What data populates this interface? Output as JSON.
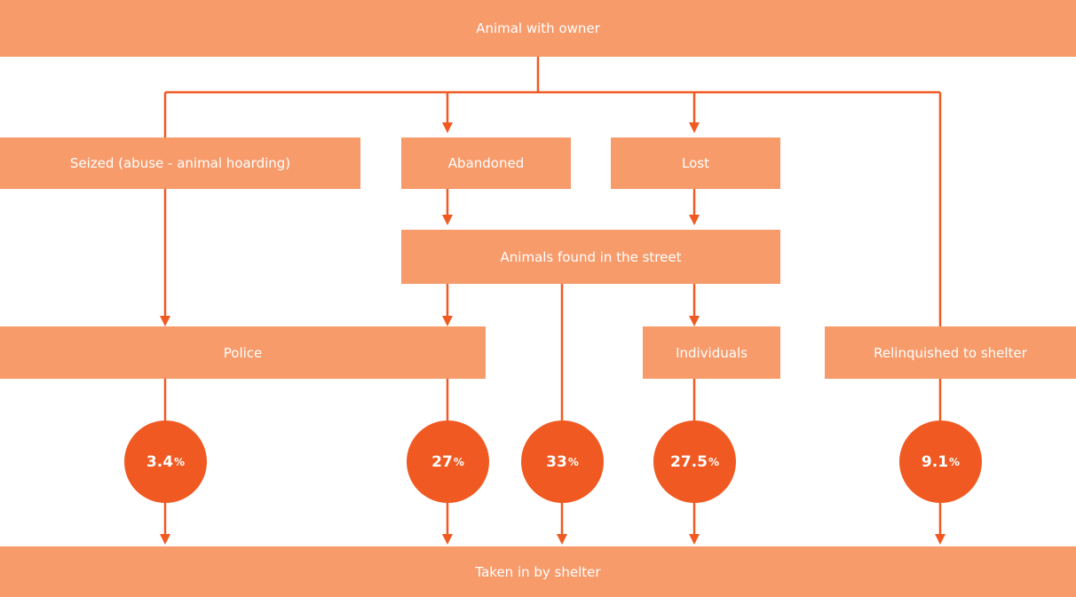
{
  "colors": {
    "box": "#f79b6b",
    "line": "#f05a22",
    "circle": "#f05a22",
    "text": "#ffffff"
  },
  "nodes": {
    "owner": "Animal with owner",
    "seized": "Seized (abuse - animal hoarding)",
    "abandoned": "Abandoned",
    "lost": "Lost",
    "street": "Animals found in the street",
    "police": "Police",
    "individuals": "Individuals",
    "relinquished": "Relinquished to shelter",
    "shelter": "Taken in by shelter"
  },
  "percentages": [
    {
      "value": "3.4",
      "unit": "%"
    },
    {
      "value": "27",
      "unit": "%"
    },
    {
      "value": "33",
      "unit": "%"
    },
    {
      "value": "27.5",
      "unit": "%"
    },
    {
      "value": "9.1",
      "unit": "%"
    }
  ]
}
